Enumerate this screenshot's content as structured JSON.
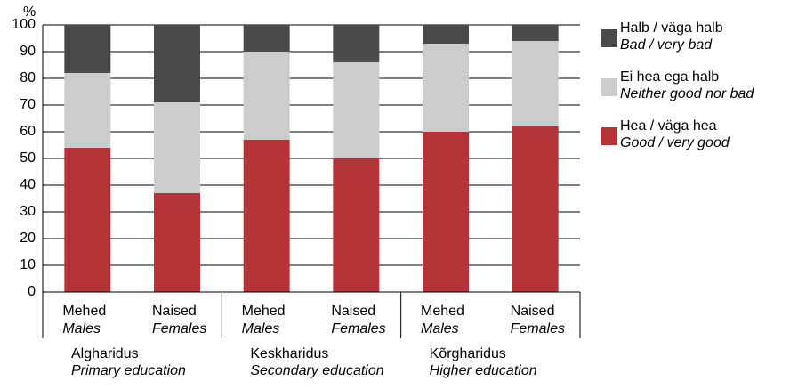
{
  "chart_data": {
    "type": "stacked_bar",
    "y_unit": "%",
    "categories": [
      "Mehed",
      "Naised",
      "Mehed",
      "Naised",
      "Mehed",
      "Naised"
    ],
    "categories_en": [
      "Males",
      "Females",
      "Males",
      "Females",
      "Males",
      "Females"
    ],
    "groups": [
      {
        "name": "Algharidus",
        "name_en": "Primary education"
      },
      {
        "name": "Keskharidus",
        "name_en": "Secondary education"
      },
      {
        "name": "Kõrgharidus",
        "name_en": "Higher education"
      }
    ],
    "series": [
      {
        "name": "Hea / väga hea",
        "name_en": "Good / very good",
        "color": "#b5343a",
        "values": [
          54,
          37,
          57,
          50,
          60,
          62
        ]
      },
      {
        "name": "Ei hea ega halb",
        "name_en": "Neither good nor bad",
        "color": "#cccccc",
        "values": [
          28,
          34,
          33,
          36,
          33,
          32
        ]
      },
      {
        "name": "Halb / väga halb",
        "name_en": "Bad / very bad",
        "color": "#4a4a4a",
        "values": [
          18,
          29,
          10,
          14,
          7,
          6
        ]
      }
    ],
    "ylim": [
      0,
      100
    ],
    "yticks": [
      0,
      10,
      20,
      30,
      40,
      50,
      60,
      70,
      80,
      90,
      100
    ],
    "grid": true
  }
}
